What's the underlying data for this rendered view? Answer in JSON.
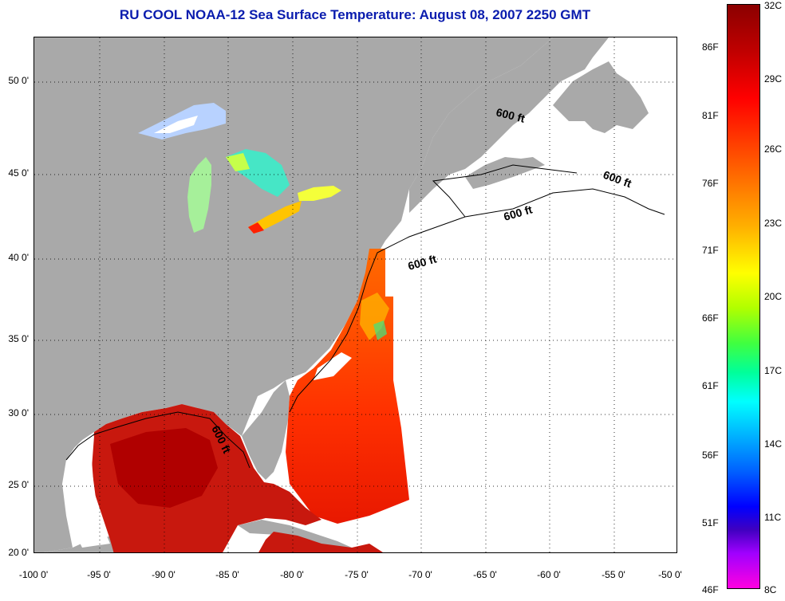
{
  "title": "RU COOL  NOAA-12  Sea Surface Temperature:  August 08, 2007 2250 GMT",
  "map": {
    "lat_ticks": [
      "50 0'",
      "45 0'",
      "40 0'",
      "35 0'",
      "30 0'",
      "25 0'",
      "20 0'"
    ],
    "lon_ticks": [
      "-100 0'",
      "-95 0'",
      "-90 0'",
      "-85 0'",
      "-80 0'",
      "-75 0'",
      "-70 0'",
      "-65 0'",
      "-60 0'",
      "-55 0'",
      "-50 0'"
    ],
    "isobath_labels": [
      "600 ft",
      "600 ft",
      "600 ft",
      "600 ft",
      "600 ft"
    ],
    "colors": {
      "land": "#a9a9a9",
      "ocean_nodata": "#ffffff",
      "grid": "#000000"
    }
  },
  "colorbar": {
    "celsius": [
      "32C",
      "29C",
      "26C",
      "23C",
      "20C",
      "17C",
      "14C",
      "11C",
      "8C"
    ],
    "fahrenheit": [
      "86F",
      "81F",
      "76F",
      "71F",
      "66F",
      "61F",
      "56F",
      "51F",
      "46F"
    ],
    "range_c": [
      8,
      32
    ]
  }
}
